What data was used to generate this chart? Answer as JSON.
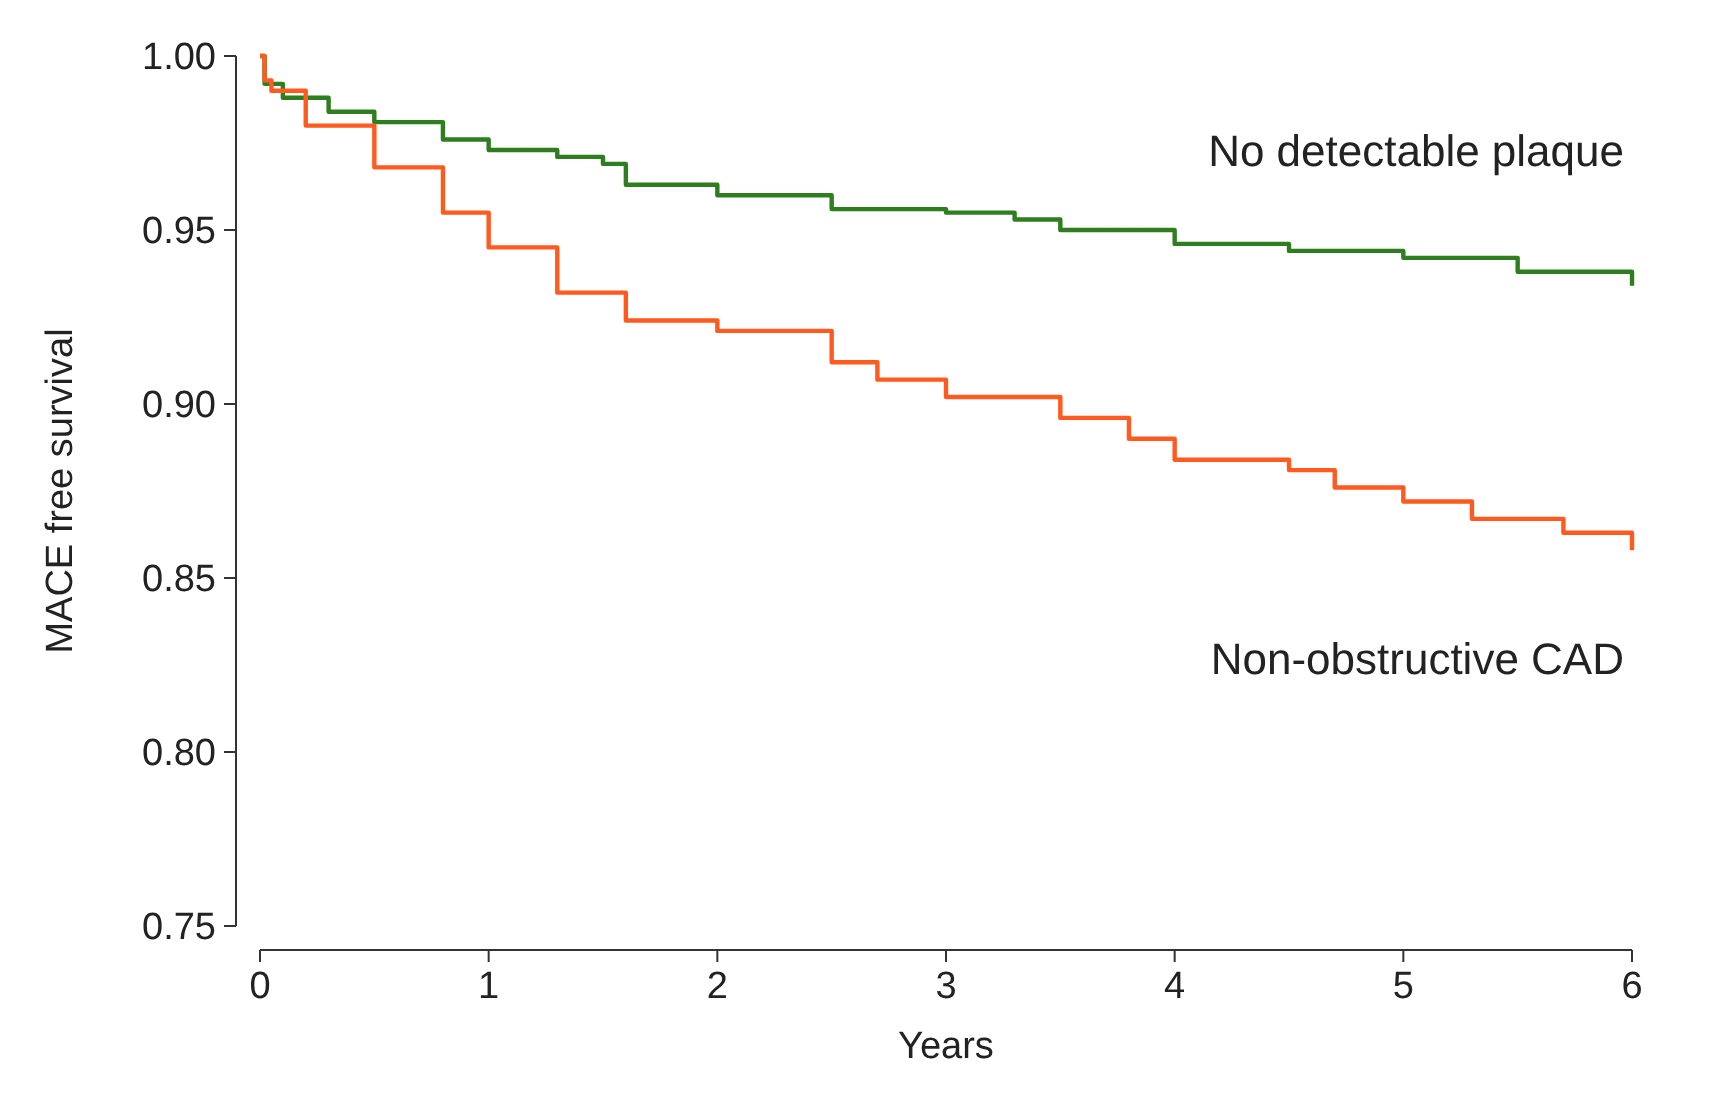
{
  "chart_data": {
    "type": "step",
    "xlabel": "Years",
    "ylabel": "MACE free survival",
    "xlim": [
      0,
      6
    ],
    "ylim": [
      0.75,
      1
    ],
    "xticks": [
      0,
      1,
      2,
      3,
      4,
      5,
      6
    ],
    "yticks": [
      {
        "value": 0.75,
        "label": "0.75"
      },
      {
        "value": 0.8,
        "label": "0.80"
      },
      {
        "value": 0.85,
        "label": "0.85"
      },
      {
        "value": 0.9,
        "label": "0.90"
      },
      {
        "value": 0.95,
        "label": "0.95"
      },
      {
        "value": 1,
        "label": "1.00"
      }
    ],
    "grid": false,
    "line_style": "solid",
    "series": [
      {
        "name": "No detectable plaque",
        "color": "#2e7d1e",
        "x": [
          0,
          0.02,
          0.1,
          0.3,
          0.5,
          0.8,
          1,
          1.3,
          1.5,
          1.6,
          2,
          2.5,
          3,
          3.3,
          3.5,
          4,
          4.5,
          5,
          5.5,
          6
        ],
        "values": [
          1,
          0.992,
          0.988,
          0.984,
          0.981,
          0.976,
          0.973,
          0.971,
          0.969,
          0.963,
          0.96,
          0.956,
          0.955,
          0.953,
          0.95,
          0.946,
          0.944,
          0.942,
          0.938,
          0.934
        ]
      },
      {
        "name": "Non-obstructive CAD",
        "color": "#ff5a1f",
        "x": [
          0,
          0.02,
          0.05,
          0.2,
          0.5,
          0.8,
          1,
          1.3,
          1.6,
          2,
          2.5,
          2.7,
          3,
          3.5,
          3.8,
          4,
          4.5,
          4.7,
          5,
          5.3,
          5.7,
          6
        ],
        "values": [
          1,
          0.993,
          0.99,
          0.98,
          0.968,
          0.955,
          0.945,
          0.932,
          0.924,
          0.921,
          0.912,
          0.907,
          0.902,
          0.896,
          0.89,
          0.884,
          0.881,
          0.876,
          0.872,
          0.867,
          0.863,
          0.858
        ]
      }
    ]
  }
}
